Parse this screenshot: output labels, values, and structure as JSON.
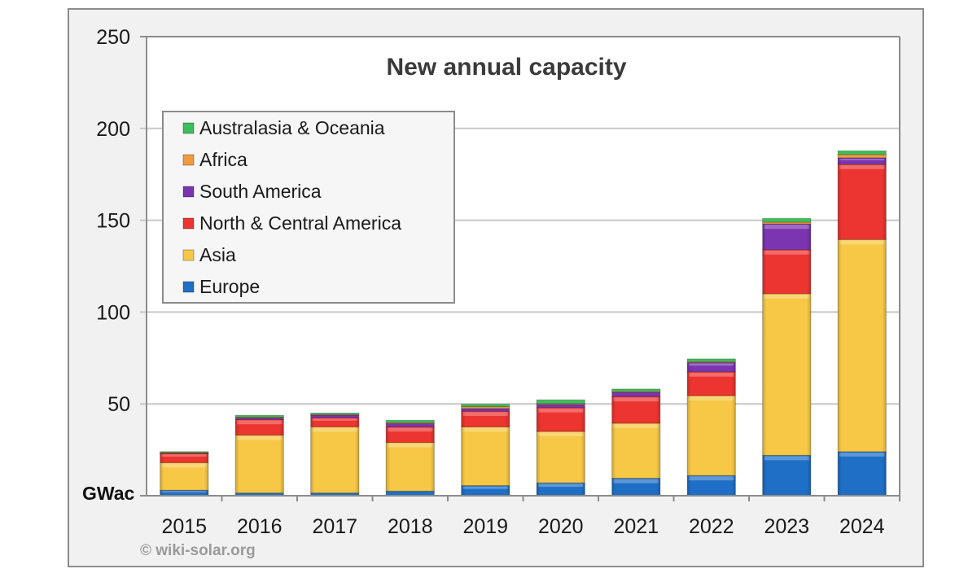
{
  "chart_data": {
    "type": "bar",
    "stacked": true,
    "title": "New annual capacity",
    "xlabel": "",
    "ylabel": "GWac",
    "ylim": [
      0,
      250
    ],
    "yticks": [
      50,
      100,
      150,
      200,
      250
    ],
    "grid": true,
    "legend_position": "top-left",
    "credit": "© wiki-solar.org",
    "categories": [
      "2015",
      "2016",
      "2017",
      "2018",
      "2019",
      "2020",
      "2021",
      "2022",
      "2023",
      "2024"
    ],
    "series": [
      {
        "name": "Europe",
        "color": "#1f6fc6",
        "values": [
          3,
          1.5,
          1.5,
          2.5,
          5.5,
          7,
          9.5,
          11,
          22,
          24
        ]
      },
      {
        "name": "Asia",
        "color": "#f7c845",
        "values": [
          15,
          31.5,
          36,
          26.5,
          32,
          28,
          30,
          43.5,
          88,
          115.5
        ]
      },
      {
        "name": "North & Central America",
        "color": "#ec3431",
        "values": [
          5,
          8.5,
          5,
          8.5,
          8.5,
          13,
          14.5,
          13,
          24,
          41
        ]
      },
      {
        "name": "South America",
        "color": "#7b35b0",
        "values": [
          0.3,
          1,
          1.5,
          1.8,
          1.5,
          1.7,
          2.3,
          5,
          14,
          3.5
        ]
      },
      {
        "name": "Africa",
        "color": "#f09a3e",
        "values": [
          0.2,
          0.3,
          0.3,
          0.5,
          1,
          0.5,
          0.5,
          0.5,
          1,
          1.8
        ]
      },
      {
        "name": "Australasia & Oceania",
        "color": "#3cbf5a",
        "values": [
          0.5,
          1,
          0.7,
          1.3,
          1.3,
          2,
          1.3,
          1.5,
          2,
          2
        ]
      }
    ]
  }
}
